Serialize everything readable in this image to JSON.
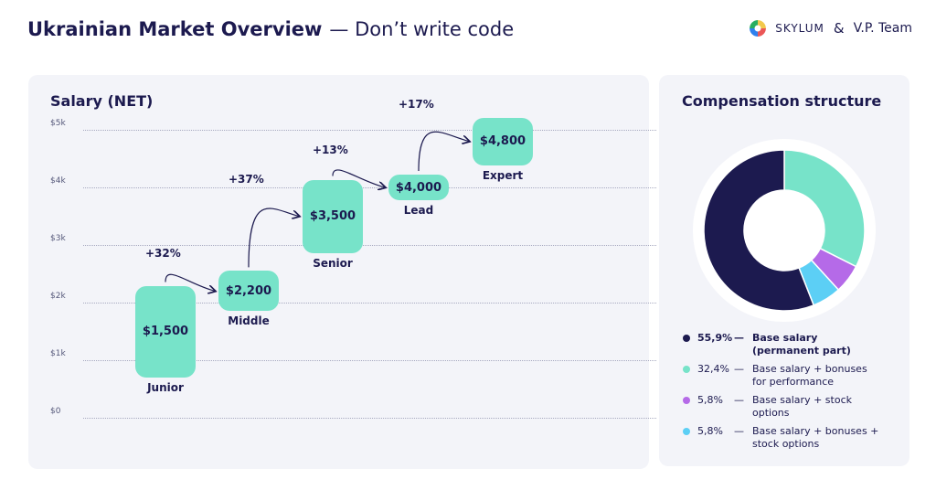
{
  "header": {
    "title_bold": "Ukrainian Market Overview",
    "title_rest": "— Don’t write code",
    "logo_skylum": "SKYLUM",
    "logo_amp": "&",
    "logo_vp": "V.P. Team"
  },
  "salary_panel": {
    "title": "Salary (NET)"
  },
  "compensation_panel": {
    "title": "Compensation structure"
  },
  "chart_data": [
    {
      "type": "bar",
      "title": "Salary (NET)",
      "ylim": [
        0,
        5000
      ],
      "y_ticks": [
        "$0",
        "$1k",
        "$2k",
        "$3k",
        "$4k",
        "$5k"
      ],
      "grid": true,
      "categories": [
        "Junior",
        "Middle",
        "Senior",
        "Lead",
        "Expert"
      ],
      "values": [
        1500,
        2200,
        3500,
        4000,
        4800
      ],
      "value_labels": [
        "$1,500",
        "$2,200",
        "$3,500",
        "$4,000",
        "$4,800"
      ],
      "growth_labels": [
        "+32%",
        "+37%",
        "+13%",
        "+17%"
      ]
    },
    {
      "type": "pie",
      "title": "Compensation structure",
      "slices": [
        {
          "pct_label": "55,9%",
          "value": 55.9,
          "label": "Base salary (permanent part)",
          "color": "#1c1a4f"
        },
        {
          "pct_label": "32,4%",
          "value": 32.4,
          "label": "Base salary + bonuses for performance",
          "color": "#77e3c9"
        },
        {
          "pct_label": "5,8%",
          "value": 5.8,
          "label": "Base salary + stock options",
          "color": "#b56ae8"
        },
        {
          "pct_label": "5,8%",
          "value": 5.8,
          "label": "Base salary + bonuses + stock options",
          "color": "#5ccff5"
        }
      ],
      "legend_dash": "—"
    }
  ],
  "colors": {
    "navy": "#1c1a4f",
    "mint": "#77e3c9",
    "purple": "#b56ae8",
    "sky": "#5ccff5",
    "panel": "#f3f4f9"
  }
}
